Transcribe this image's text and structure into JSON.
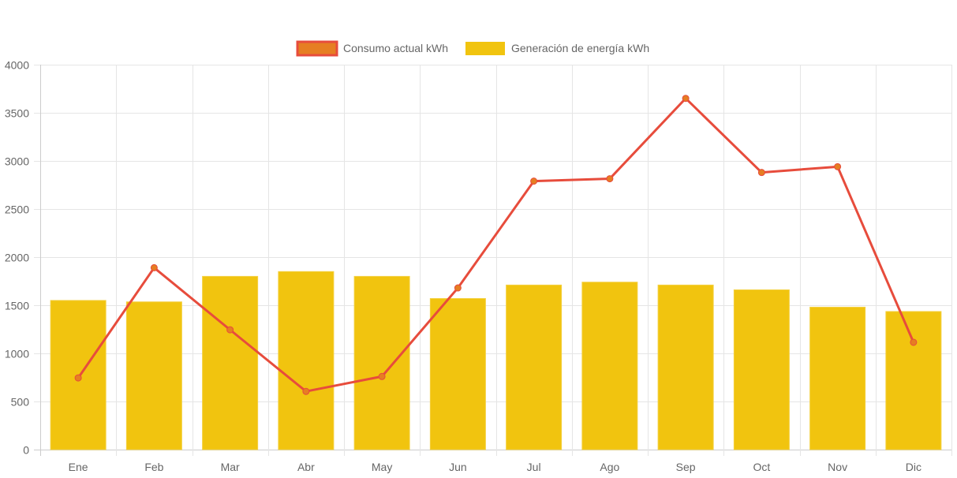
{
  "chart_data": {
    "type": "bar",
    "title": "",
    "xlabel": "",
    "ylabel": "",
    "categories": [
      "Ene",
      "Feb",
      "Mar",
      "Abr",
      "May",
      "Jun",
      "Jul",
      "Ago",
      "Sep",
      "Oct",
      "Nov",
      "Dic"
    ],
    "ylim": [
      0,
      4000
    ],
    "yticks": [
      0,
      500,
      1000,
      1500,
      2000,
      2500,
      3000,
      3500,
      4000
    ],
    "grid": true,
    "legend_position": "top-center",
    "series": [
      {
        "name": "Consumo actual kWh",
        "type": "line",
        "color": "#e74c3c",
        "point_color": "#e67e22",
        "values": [
          745,
          1890,
          1245,
          605,
          760,
          1680,
          2790,
          2815,
          3650,
          2880,
          2940,
          1115
        ]
      },
      {
        "name": "Generación de energía kWh",
        "type": "bar",
        "color": "#f1c40f",
        "values": [
          1550,
          1535,
          1800,
          1850,
          1800,
          1570,
          1710,
          1740,
          1710,
          1660,
          1480,
          1435
        ]
      }
    ]
  }
}
